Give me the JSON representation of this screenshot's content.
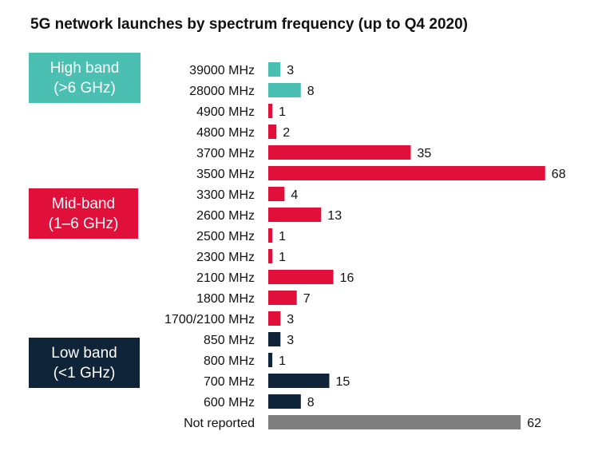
{
  "chart_data": {
    "type": "bar",
    "orientation": "horizontal",
    "title": "5G network launches by spectrum frequency (up to Q4 2020)",
    "categories": [
      "39000 MHz",
      "28000 MHz",
      "4900 MHz",
      "4800 MHz",
      "3700 MHz",
      "3500 MHz",
      "3300 MHz",
      "2600 MHz",
      "2500 MHz",
      "2300 MHz",
      "2100 MHz",
      "1800 MHz",
      "1700/2100 MHz",
      "850 MHz",
      "800 MHz",
      "700 MHz",
      "600 MHz",
      "Not reported"
    ],
    "values": [
      3,
      8,
      1,
      2,
      35,
      68,
      4,
      13,
      1,
      1,
      16,
      7,
      3,
      3,
      1,
      15,
      8,
      62
    ],
    "band_of_category": [
      "high",
      "high",
      "mid",
      "mid",
      "mid",
      "mid",
      "mid",
      "mid",
      "mid",
      "mid",
      "mid",
      "mid",
      "mid",
      "low",
      "low",
      "low",
      "low",
      "none"
    ],
    "data_labels": true,
    "grid": false,
    "xlim": [
      0,
      68
    ],
    "colors": {
      "high": "#4cbfb3",
      "mid": "#e0103a",
      "low": "#0f2439",
      "none": "#7f7f7f"
    },
    "bands": [
      {
        "key": "high",
        "line1": "High band",
        "line2": "(>6 GHz)"
      },
      {
        "key": "mid",
        "line1": "Mid-band",
        "line2": "(1–6 GHz)"
      },
      {
        "key": "low",
        "line1": "Low band",
        "line2": "(<1 GHz)"
      }
    ]
  }
}
